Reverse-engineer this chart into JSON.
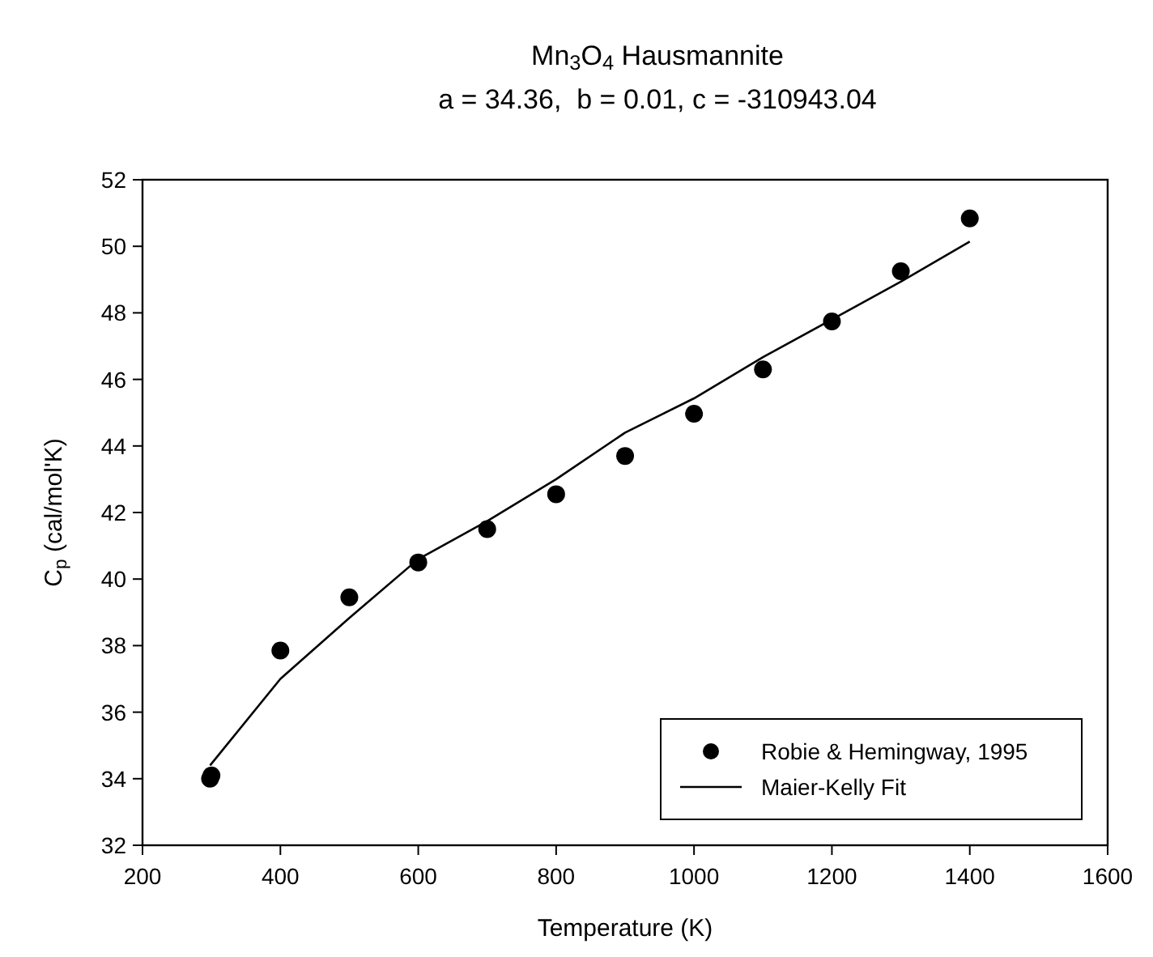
{
  "chart_data": {
    "type": "scatter",
    "title": "Mn$_{3}$O$_{4}$ Hausmannite",
    "subtitle": "a = 34.36,  b = 0.01, c = -310943.04",
    "xlabel": "Temperature (K)",
    "ylabel": "C$_{p}$ (cal/mol'K)",
    "xlim": [
      200,
      1600
    ],
    "xticks": [
      200,
      400,
      600,
      800,
      1000,
      1200,
      1400,
      1600
    ],
    "ylim": [
      32,
      52
    ],
    "yticks": [
      32,
      34,
      36,
      38,
      40,
      42,
      44,
      46,
      48,
      50,
      52
    ],
    "grid": false,
    "legend": "bottom right",
    "series": [
      {
        "name": "Robie & Hemingway, 1995",
        "marker": "circle",
        "color": "#000000",
        "x": [
          298,
          300,
          400,
          500,
          600,
          700,
          800,
          900,
          1000,
          1100,
          1200,
          1300,
          1400
        ],
        "values": [
          34.0,
          34.1,
          37.85,
          39.45,
          40.5,
          41.5,
          42.55,
          43.7,
          44.97,
          46.3,
          47.74,
          49.25,
          50.84
        ]
      },
      {
        "name": "Maier-Kelly Fit",
        "type": "line",
        "marker": "none",
        "line_style": "solid",
        "color": "#000000",
        "x": [
          298,
          400,
          500,
          600,
          700,
          800,
          900,
          1000,
          1100,
          1200,
          1300,
          1400
        ],
        "values": [
          34.4,
          37.0,
          38.83,
          40.6,
          41.74,
          43.0,
          44.4,
          45.43,
          46.67,
          47.8,
          48.94,
          50.14
        ]
      }
    ]
  }
}
